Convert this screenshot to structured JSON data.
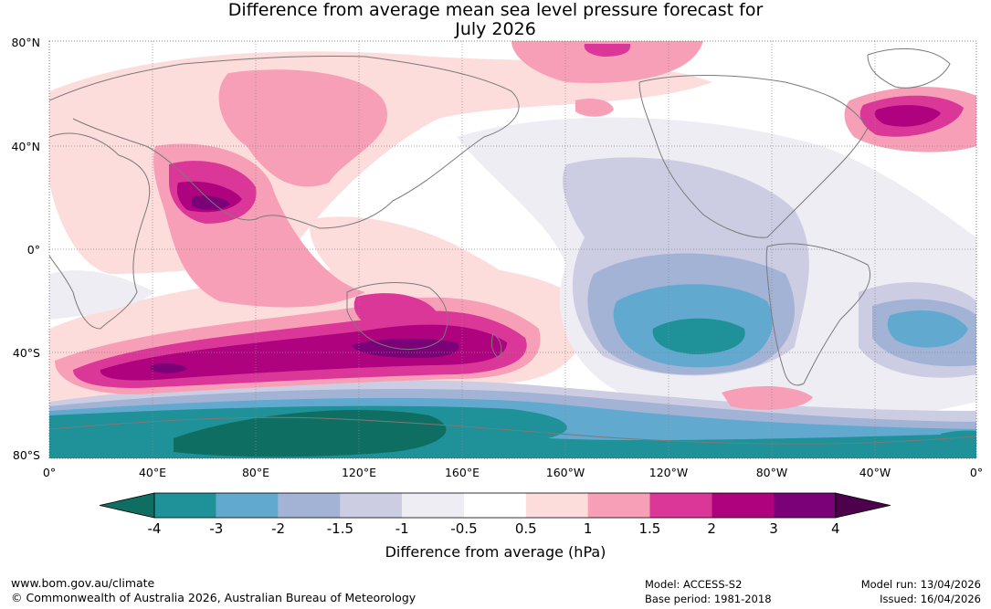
{
  "title_line1": "Difference from average mean sea level pressure forecast for",
  "title_line2": "July 2026",
  "y_ticks": [
    "80°N",
    "40°N",
    "0°",
    "40°S",
    "80°S"
  ],
  "x_ticks": [
    "0°",
    "40°E",
    "80°E",
    "120°E",
    "160°E",
    "160°W",
    "120°W",
    "80°W",
    "40°W",
    "0°"
  ],
  "colorbar": {
    "labels": [
      "-4",
      "-3",
      "-2",
      "-1.5",
      "-1",
      "-0.5",
      "0.5",
      "1",
      "1.5",
      "2",
      "3",
      "4"
    ],
    "colors": [
      "#0f6e62",
      "#1e9199",
      "#62a9cf",
      "#a2b3d6",
      "#cccde3",
      "#efedf4",
      "#ffffff",
      "#fddcdc",
      "#f89fb8",
      "#db3799",
      "#ae027e",
      "#7a0177",
      "#4d004b"
    ],
    "title": "Difference from average (hPa)"
  },
  "footer": {
    "website": "www.bom.gov.au/climate",
    "copyright": "© Commonwealth of Australia 2026, Australian Bureau of Meteorology",
    "model": "Model: ACCESS-S2",
    "base_period": "Base period: 1981-2018",
    "model_run": "Model run: 13/04/2026",
    "issued": "Issued: 16/04/2026"
  }
}
